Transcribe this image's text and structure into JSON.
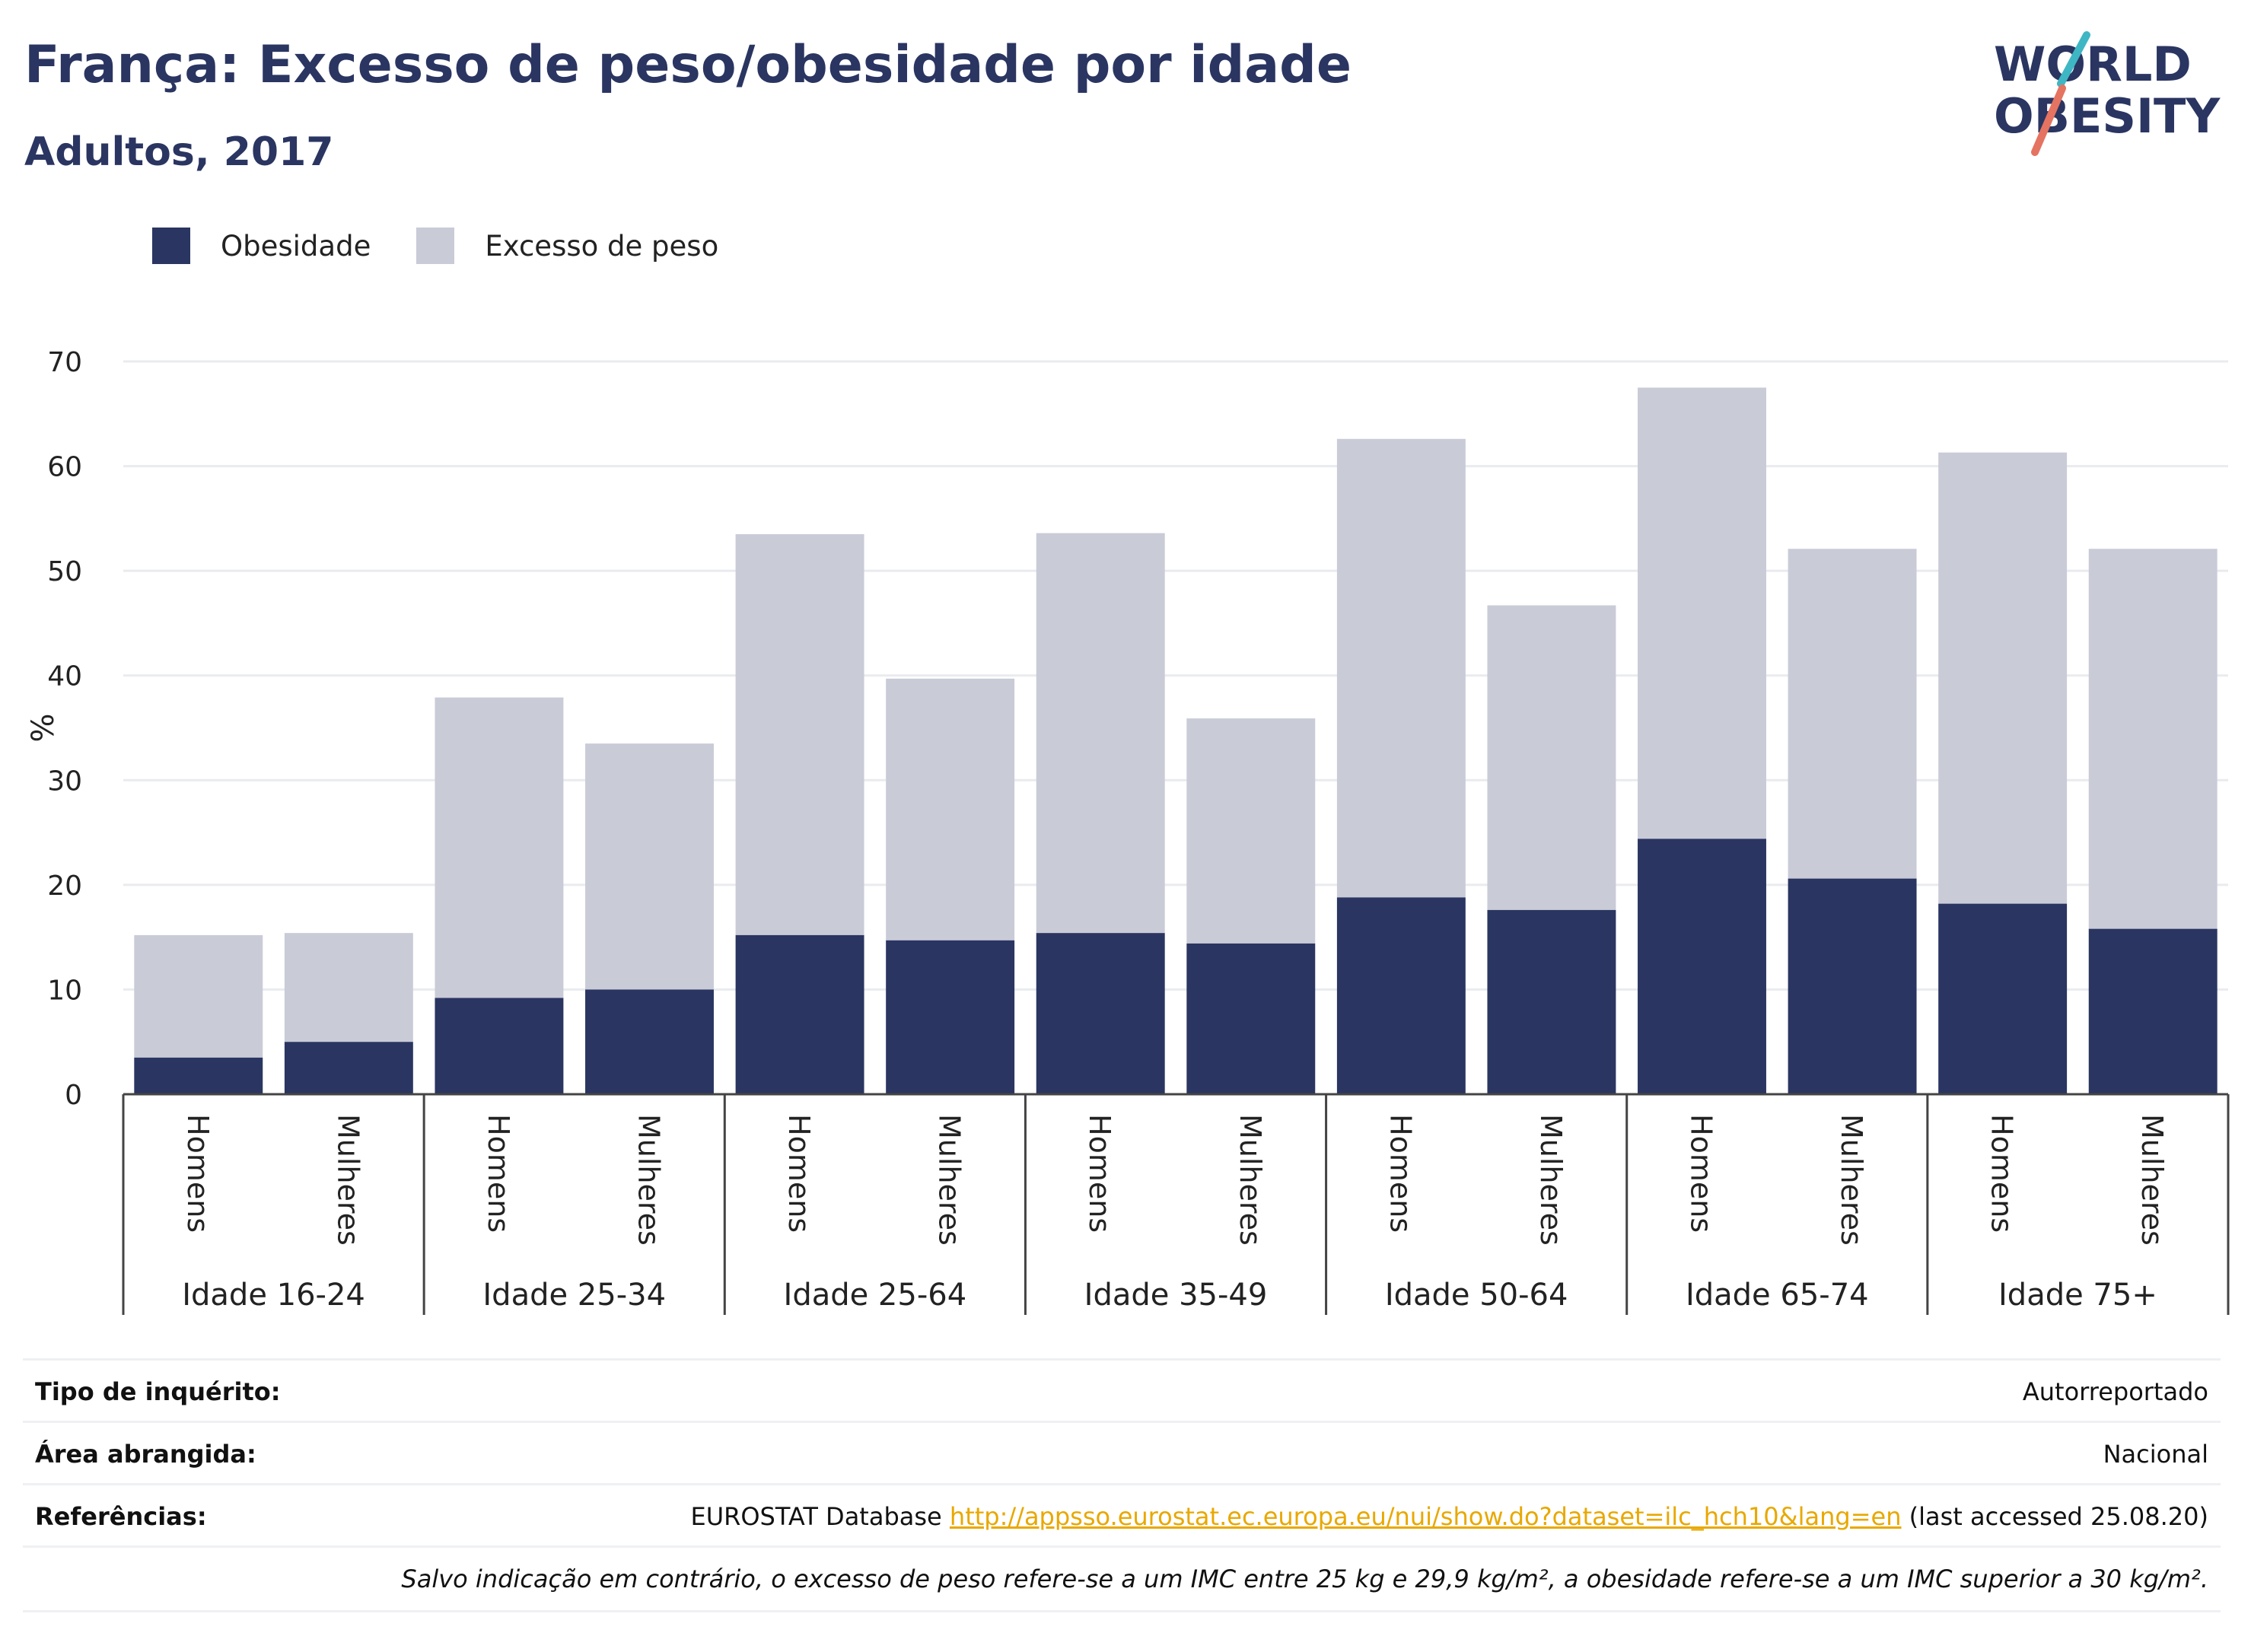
{
  "header": {
    "title": "França: Excesso de peso/obesidade por idade",
    "subtitle": "Adultos, 2017"
  },
  "logo": {
    "line1": "WORLD",
    "line2": "OBESITY",
    "icon": "world-obesity-logo"
  },
  "colors": {
    "obesity": "#2a3561",
    "overweight": "#c9cbd7",
    "grid": "#e9ebef",
    "link": "#e8a800"
  },
  "legend": [
    {
      "label": "Obesidade",
      "color": "#2a3561"
    },
    {
      "label": "Excesso de peso",
      "color": "#c9cbd7"
    }
  ],
  "chart_data": {
    "type": "bar",
    "stacked": true,
    "ylabel": "%",
    "ylim": [
      0,
      70
    ],
    "yticks": [
      0,
      10,
      20,
      30,
      40,
      50,
      60,
      70
    ],
    "grid": true,
    "legend_position": "top-left",
    "groups": [
      {
        "label": "Idade 16-24",
        "bars": [
          {
            "label": "Homens",
            "obesity": 3.5,
            "total": 15.2
          },
          {
            "label": "Mulheres",
            "obesity": 5.0,
            "total": 15.4
          }
        ]
      },
      {
        "label": "Idade 25-34",
        "bars": [
          {
            "label": "Homens",
            "obesity": 9.2,
            "total": 37.9
          },
          {
            "label": "Mulheres",
            "obesity": 10.0,
            "total": 33.5
          }
        ]
      },
      {
        "label": "Idade 25-64",
        "bars": [
          {
            "label": "Homens",
            "obesity": 15.2,
            "total": 53.5
          },
          {
            "label": "Mulheres",
            "obesity": 14.7,
            "total": 39.7
          }
        ]
      },
      {
        "label": "Idade 35-49",
        "bars": [
          {
            "label": "Homens",
            "obesity": 15.4,
            "total": 53.6
          },
          {
            "label": "Mulheres",
            "obesity": 14.4,
            "total": 35.9
          }
        ]
      },
      {
        "label": "Idade 50-64",
        "bars": [
          {
            "label": "Homens",
            "obesity": 18.8,
            "total": 62.6
          },
          {
            "label": "Mulheres",
            "obesity": 17.6,
            "total": 46.7
          }
        ]
      },
      {
        "label": "Idade 65-74",
        "bars": [
          {
            "label": "Homens",
            "obesity": 24.4,
            "total": 67.5
          },
          {
            "label": "Mulheres",
            "obesity": 20.6,
            "total": 52.1
          }
        ]
      },
      {
        "label": "Idade 75+",
        "bars": [
          {
            "label": "Homens",
            "obesity": 18.2,
            "total": 61.3
          },
          {
            "label": "Mulheres",
            "obesity": 15.8,
            "total": 52.1
          }
        ]
      }
    ]
  },
  "info": {
    "survey_label": "Tipo de inquérito:",
    "survey_value": "Autorreportado",
    "area_label": "Área abrangida:",
    "area_value": "Nacional",
    "refs_label": "Referências:",
    "refs_prefix": "EUROSTAT Database",
    "refs_link": "http://appsso.eurostat.ec.europa.eu/nui/show.do?dataset=ilc_hch10&lang=en",
    "refs_suffix": "(last accessed 25.08.20)",
    "note": "Salvo indicação em contrário, o excesso de peso refere-se a um IMC entre 25 kg e 29,9 kg/m², a obesidade refere-se a um IMC superior a 30 kg/m²."
  }
}
